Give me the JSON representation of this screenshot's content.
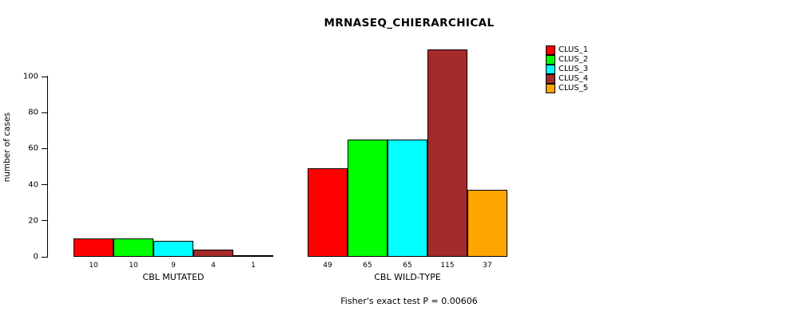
{
  "chart_data": {
    "type": "bar",
    "title": "MRNASEQ_CHIERARCHICAL",
    "subtitle": "Fisher's exact test P = 0.00606",
    "ylabel": "number of cases",
    "categories": [
      "CBL MUTATED",
      "CBL WILD-TYPE"
    ],
    "series": [
      {
        "name": "CLUS_1",
        "color": "#ff0000",
        "values": [
          10,
          49
        ]
      },
      {
        "name": "CLUS_2",
        "color": "#00ff00",
        "values": [
          10,
          65
        ]
      },
      {
        "name": "CLUS_3",
        "color": "#00ffff",
        "values": [
          9,
          65
        ]
      },
      {
        "name": "CLUS_4",
        "color": "#a52a2a",
        "values": [
          4,
          115
        ]
      },
      {
        "name": "CLUS_5",
        "color": "#ffa500",
        "values": [
          1,
          37
        ]
      }
    ],
    "yticks": [
      0,
      20,
      40,
      60,
      80,
      100
    ],
    "ylim": [
      0,
      116
    ],
    "grid": false,
    "legend_position": "right",
    "legend": [
      "CLUS_1",
      "CLUS_2",
      "CLUS_3",
      "CLUS_4",
      "CLUS_5"
    ]
  }
}
